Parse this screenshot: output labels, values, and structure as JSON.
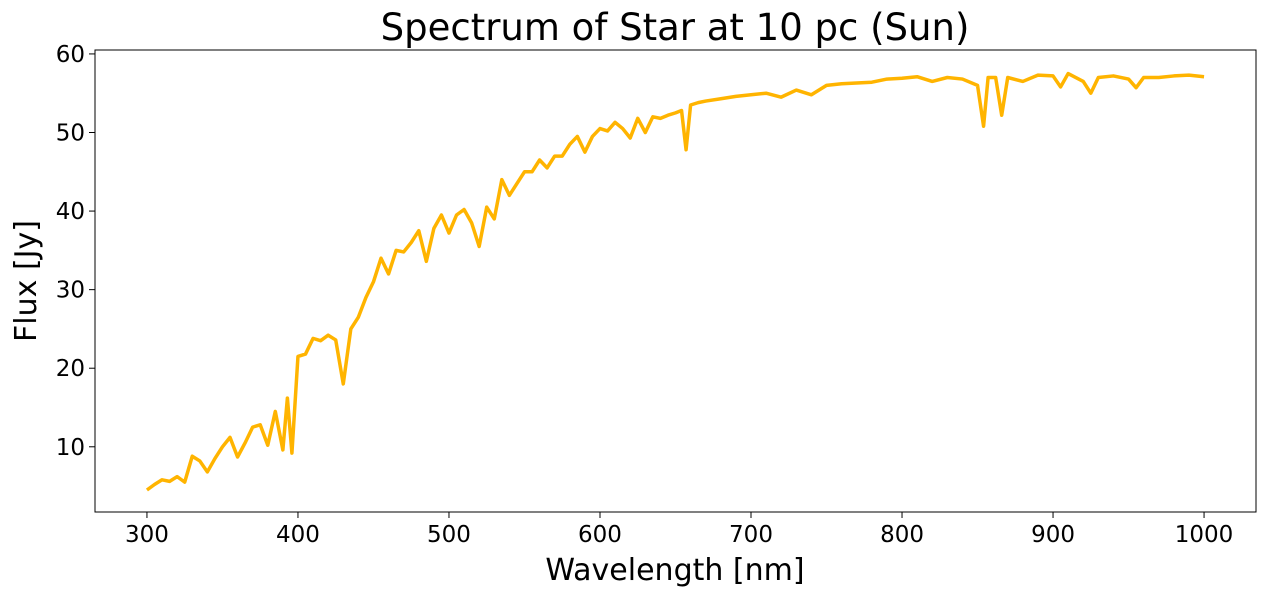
{
  "chart_data": {
    "type": "line",
    "title": "Spectrum of Star at 10 pc (Sun)",
    "x_label": "Wavelength [nm]",
    "y_label": "Flux [Jy]",
    "x": [
      300,
      305,
      310,
      315,
      320,
      325,
      330,
      335,
      340,
      345,
      350,
      355,
      360,
      365,
      370,
      375,
      380,
      385,
      390,
      393,
      396,
      400,
      405,
      410,
      415,
      420,
      425,
      430,
      435,
      440,
      445,
      450,
      455,
      460,
      465,
      470,
      475,
      480,
      485,
      490,
      495,
      500,
      505,
      510,
      515,
      520,
      525,
      530,
      535,
      540,
      545,
      550,
      555,
      560,
      565,
      570,
      575,
      580,
      585,
      590,
      595,
      600,
      605,
      610,
      615,
      620,
      625,
      630,
      635,
      640,
      645,
      650,
      654,
      657,
      660,
      665,
      670,
      680,
      690,
      700,
      710,
      720,
      730,
      740,
      750,
      760,
      770,
      780,
      790,
      800,
      810,
      820,
      830,
      840,
      850,
      854,
      857,
      862,
      866,
      870,
      880,
      890,
      900,
      905,
      910,
      920,
      925,
      930,
      940,
      950,
      955,
      960,
      970,
      980,
      990,
      1000
    ],
    "series": [
      {
        "name": "Sun",
        "color": "#ffb400",
        "values": [
          4.5,
          5.2,
          5.8,
          5.6,
          6.2,
          5.5,
          8.8,
          8.2,
          6.8,
          8.5,
          10,
          11.2,
          8.7,
          10.5,
          12.5,
          12.8,
          10.2,
          14.5,
          9.6,
          16.2,
          9.2,
          21.5,
          21.8,
          23.8,
          23.5,
          24.2,
          23.6,
          18,
          25,
          26.5,
          29,
          31,
          34,
          32,
          35,
          34.8,
          36,
          37.5,
          33.6,
          37.8,
          39.5,
          37.2,
          39.5,
          40.2,
          38.5,
          35.5,
          40.5,
          39,
          44,
          42,
          43.5,
          45,
          45,
          46.5,
          45.5,
          47,
          47,
          48.5,
          49.5,
          47.5,
          49.5,
          50.5,
          50.2,
          51.3,
          50.5,
          49.3,
          51.8,
          50,
          52,
          51.8,
          52.2,
          52.5,
          52.8,
          47.8,
          53.5,
          53.8,
          54,
          54.3,
          54.6,
          54.8,
          55,
          54.5,
          55.4,
          54.8,
          56,
          56.2,
          56.3,
          56.4,
          56.8,
          56.9,
          57.1,
          56.5,
          57,
          56.8,
          56,
          50.8,
          57,
          57,
          52.2,
          57,
          56.5,
          57.3,
          57.2,
          55.8,
          57.5,
          56.5,
          55,
          57,
          57.2,
          56.8,
          55.7,
          57,
          57,
          57.2,
          57.3,
          57.1
        ]
      }
    ],
    "xlim": [
      265.6,
      1034.4
    ],
    "ylim": [
      1.7,
      60.5
    ],
    "xticks": [
      300,
      400,
      500,
      600,
      700,
      800,
      900,
      1000
    ],
    "yticks": [
      10,
      20,
      30,
      40,
      50,
      60
    ],
    "grid": false
  }
}
